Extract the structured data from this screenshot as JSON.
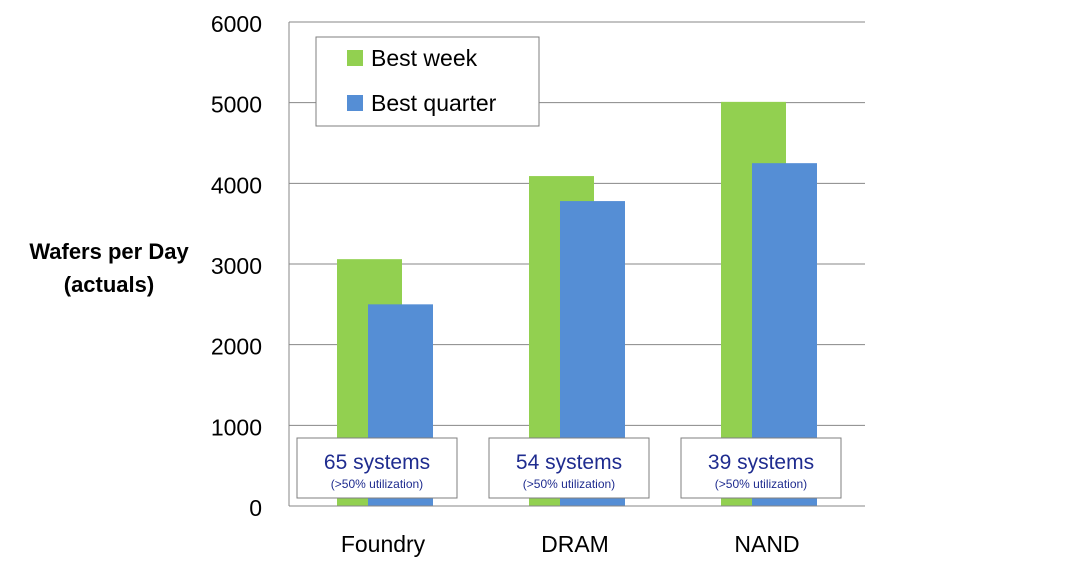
{
  "chart_data": {
    "type": "bar",
    "ylabel": [
      "Wafers per Day",
      "(actuals)"
    ],
    "categories": [
      "Foundry",
      "DRAM",
      "NAND"
    ],
    "series": [
      {
        "name": "Best week",
        "values": [
          3060,
          4090,
          5010
        ],
        "color": "#92d050"
      },
      {
        "name": "Best quarter",
        "values": [
          2500,
          3780,
          4250
        ],
        "color": "#558ed5"
      }
    ],
    "ylim": [
      0,
      6000
    ],
    "yticks": [
      0,
      1000,
      2000,
      3000,
      4000,
      5000,
      6000
    ],
    "grid": true,
    "legend_position": "top-left",
    "annotations": [
      {
        "main": "65 systems",
        "sub": "(>50% utilization)"
      },
      {
        "main": "54 systems",
        "sub": "(>50% utilization)"
      },
      {
        "main": "39 systems",
        "sub": "(>50% utilization)"
      }
    ],
    "annotation_color": "#1f2c8f"
  }
}
